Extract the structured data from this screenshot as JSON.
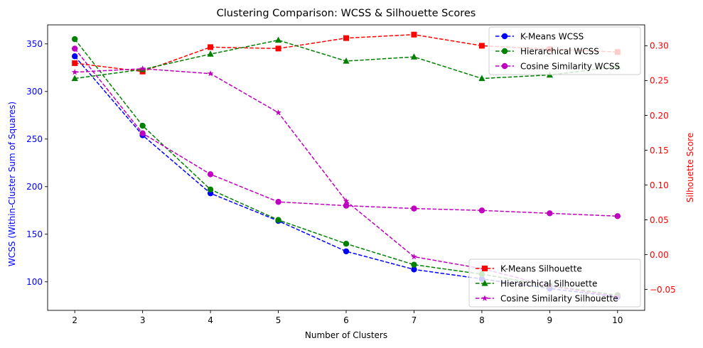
{
  "chart_data": {
    "type": "line",
    "title": "Clustering Comparison: WCSS & Silhouette Scores",
    "xlabel": "Number of Clusters",
    "x": [
      2,
      3,
      4,
      5,
      6,
      7,
      8,
      9,
      10
    ],
    "left_axis": {
      "label": "WCSS (Within-Cluster Sum of Squares)",
      "color": "#0000ff",
      "ylim": [
        70,
        370
      ],
      "ticks": [
        100,
        150,
        200,
        250,
        300,
        350
      ]
    },
    "right_axis": {
      "label": "Silhouette Score",
      "color": "#ff0000",
      "ylim": [
        -0.08,
        0.33
      ],
      "ticks": [
        -0.05,
        0.0,
        0.05,
        0.1,
        0.15,
        0.2,
        0.25,
        0.3
      ],
      "tick_labels": [
        "−0.05",
        "0.00",
        "0.05",
        "0.10",
        "0.15",
        "0.20",
        "0.25",
        "0.30"
      ]
    },
    "series": [
      {
        "name": "K-Means WCSS",
        "axis": "left",
        "color": "#0000ff",
        "marker": "circle",
        "values": [
          337,
          254,
          193,
          164,
          132,
          113,
          103,
          93,
          84
        ]
      },
      {
        "name": "Hierarchical WCSS",
        "axis": "left",
        "color": "#008000",
        "marker": "circle",
        "values": [
          355,
          264,
          197,
          165,
          140,
          118,
          108,
          96,
          86
        ]
      },
      {
        "name": "Cosine Similarity WCSS",
        "axis": "left",
        "color": "#bf00bf",
        "marker": "circle",
        "values": [
          345,
          256,
          213,
          184,
          180,
          177,
          175,
          172,
          169
        ]
      },
      {
        "name": "K-Means Silhouette",
        "axis": "right",
        "color": "#ff0000",
        "marker": "square",
        "values": [
          0.275,
          0.263,
          0.298,
          0.296,
          0.311,
          0.316,
          0.3,
          0.295,
          0.291
        ]
      },
      {
        "name": "Hierarchical Silhouette",
        "axis": "right",
        "color": "#008000",
        "marker": "triangle",
        "values": [
          0.253,
          0.266,
          0.288,
          0.308,
          0.278,
          0.284,
          0.253,
          0.258,
          0.27
        ]
      },
      {
        "name": "Cosine Similarity Silhouette",
        "axis": "right",
        "color": "#bf00bf",
        "marker": "star",
        "values": [
          0.262,
          0.267,
          0.26,
          0.204,
          0.077,
          -0.003,
          -0.02,
          -0.045,
          -0.06
        ]
      }
    ],
    "legends": [
      {
        "placement": "upper right",
        "entries": [
          "K-Means WCSS",
          "Hierarchical WCSS",
          "Cosine Similarity WCSS"
        ]
      },
      {
        "placement": "lower right",
        "entries": [
          "K-Means Silhouette",
          "Hierarchical Silhouette",
          "Cosine Similarity Silhouette"
        ]
      }
    ],
    "grid": false
  }
}
